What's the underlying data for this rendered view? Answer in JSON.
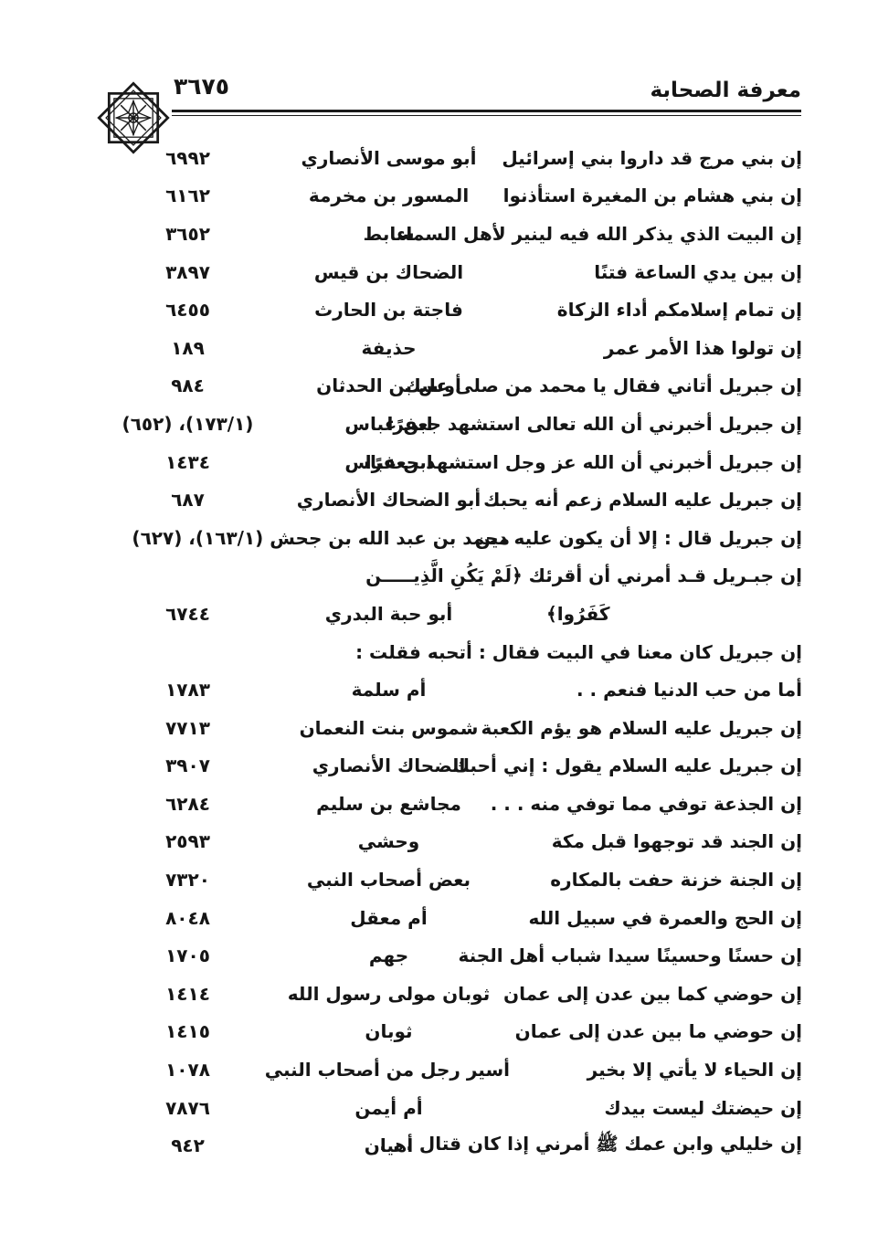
{
  "header": {
    "title": "معرفة الصحابة",
    "page_number": "٣٦٧٥",
    "ornament": "eight-pointed-star-rosette",
    "rule_color": "#1a1a1a"
  },
  "text_color": "#151515",
  "background_color": "#ffffff",
  "rows": [
    {
      "hadith": "إن بني مرج قد داروا بني إسرائيل",
      "narrator": "أبو موسى الأنصاري",
      "number": "٦٩٩٢"
    },
    {
      "hadith": "إن بني هشام بن المغيرة استأذنوا",
      "narrator": "المسور بن مخرمة",
      "number": "٦١٦٢"
    },
    {
      "hadith": "إن البيت الذي يذكر الله فيه لينير لأهل السماء",
      "narrator": "سابط",
      "number": "٣٦٥٢"
    },
    {
      "hadith": "إن بين يدي الساعة فتنًا",
      "narrator": "الضحاك بن قيس",
      "number": "٣٨٩٧"
    },
    {
      "hadith": "إن تمام إسلامكم أداء الزكاة",
      "narrator": "فاجتة بن الحارث",
      "number": "٦٤٥٥"
    },
    {
      "hadith": "إن تولوا هذا الأمر عمر",
      "narrator": "حذيفة",
      "number": "١٨٩"
    },
    {
      "hadith": "إن جبريل أتاني فقال يا محمد من صلى عليك",
      "narrator": "أوس بن الحدثان",
      "number": "٩٨٤"
    },
    {
      "hadith": "إن جبريل أخبرني أن الله تعالى استشهد جعفرًا",
      "narrator": "ابن عباس",
      "number": "(١٧٣/١)، (٦٥٢)"
    },
    {
      "hadith": "إن جبريل أخبرني أن الله عز وجل استشهد جعفرًا",
      "narrator": "ابن عباس",
      "number": "١٤٣٤"
    },
    {
      "hadith": "إن جبريل عليه السلام زعم أنه يحبك",
      "narrator": "أبو الضحاك الأنصاري",
      "number": "٦٨٧"
    },
    {
      "hadith": "إن جبريل قال : إلا أن يكون عليه دين",
      "narrator": "محمد بن عبد الله بن جحش (١٦٣/١)، (٦٢٧)",
      "kind": "wide"
    },
    {
      "hadith": "إن جبـريل قـد أمرني أن أقرئك ﴿لَمْ يَكُنِ الَّذِيـــــن",
      "kind": "textonly"
    },
    {
      "hadith": "كَفَرُوا﴾",
      "narrator": "أبو حبة البدري",
      "number": "٦٧٤٤",
      "kind": "cont-end"
    },
    {
      "hadith": "إن جبريل كان معنا في البيت فقال : أتحبه فقلت :",
      "kind": "textonly"
    },
    {
      "hadith": "أما من حب الدنيا فنعم . .",
      "narrator": "أم سلمة",
      "number": "١٧٨٣"
    },
    {
      "hadith": "إن جبريل عليه السلام هو يؤم الكعبة",
      "narrator": "شموس بنت النعمان",
      "number": "٧٧١٣"
    },
    {
      "hadith": "إن جبريل عليه السلام يقول : إني أحبك",
      "narrator": "الضحاك الأنصاري",
      "number": "٣٩٠٧"
    },
    {
      "hadith": "إن الجذعة توفي مما توفي منه . . .",
      "narrator": "مجاشع بن سليم",
      "number": "٦٢٨٤"
    },
    {
      "hadith": "إن الجند قد توجهوا قبل مكة",
      "narrator": "وحشي",
      "number": "٢٥٩٣"
    },
    {
      "hadith": "إن الجنة خزنة حفت بالمكاره",
      "narrator": "بعض أصحاب النبي",
      "number": "٧٣٢٠"
    },
    {
      "hadith": "إن الحج والعمرة في سبيل الله",
      "narrator": "أم معقل",
      "number": "٨٠٤٨"
    },
    {
      "hadith": "إن حسنًا وحسينًا سيدا شباب أهل الجنة",
      "narrator": "جهم",
      "number": "١٧٠٥"
    },
    {
      "hadith": "إن حوضي كما بين عدن إلى عمان",
      "narrator": "ثوبان مولى رسول الله",
      "number": "١٤١٤"
    },
    {
      "hadith": "إن حوضي ما بين عدن إلى عمان",
      "narrator": "ثوبان",
      "number": "١٤١٥"
    },
    {
      "hadith": "إن الحياء لا يأتي إلا بخير",
      "narrator": "أسير رجل من أصحاب النبي",
      "number": "١٠٧٨"
    },
    {
      "hadith": "إن حيضتك ليست بيدك",
      "narrator": "أم أيمن",
      "number": "٧٨٧٦"
    },
    {
      "hadith": "إن خليلي وابن عمك ﷺ أمرني إذا كان قتال . . .",
      "narrator": "أهيان",
      "number": "٩٤٢"
    }
  ]
}
